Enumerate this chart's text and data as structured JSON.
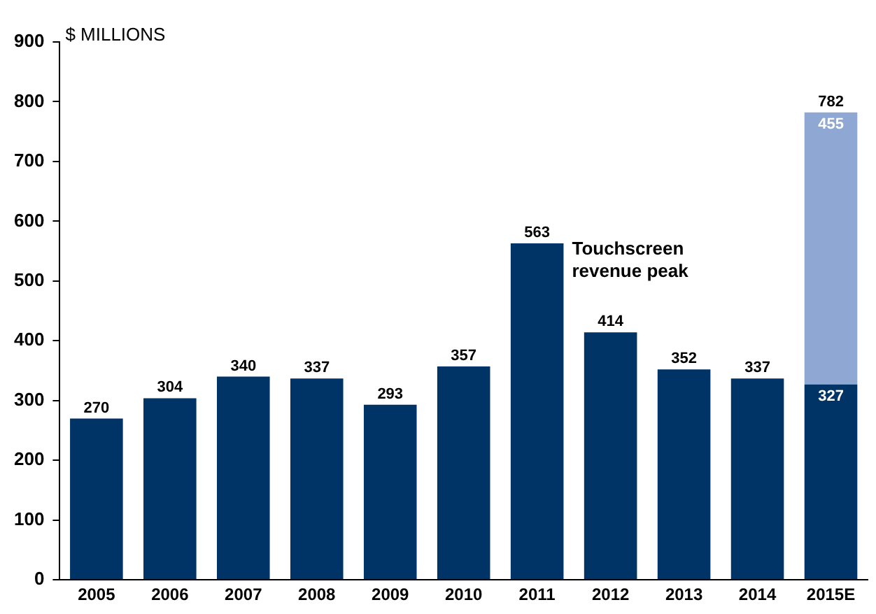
{
  "chart_data": {
    "type": "bar",
    "stacked": true,
    "ylabel": "$ MILLIONS",
    "categories": [
      "2005",
      "2006",
      "2007",
      "2008",
      "2009",
      "2010",
      "2011",
      "2012",
      "2013",
      "2014",
      "2015E"
    ],
    "series": [
      {
        "color": "#003366",
        "values": [
          270,
          304,
          340,
          337,
          293,
          357,
          563,
          414,
          352,
          337,
          327
        ]
      },
      {
        "color": "#8ea7d3",
        "values": [
          null,
          null,
          null,
          null,
          null,
          null,
          null,
          null,
          null,
          null,
          455
        ]
      }
    ],
    "ylim": [
      0,
      900
    ],
    "yticks": [
      0,
      100,
      200,
      300,
      400,
      500,
      600,
      700,
      800,
      900
    ],
    "grid": false,
    "legend": false,
    "data_labels": true,
    "totals": [
      null,
      null,
      null,
      null,
      null,
      null,
      null,
      null,
      null,
      null,
      "782"
    ],
    "annotations": [
      {
        "text": "Touchscreen revenue peak",
        "x": "2011",
        "y": 563
      }
    ]
  }
}
